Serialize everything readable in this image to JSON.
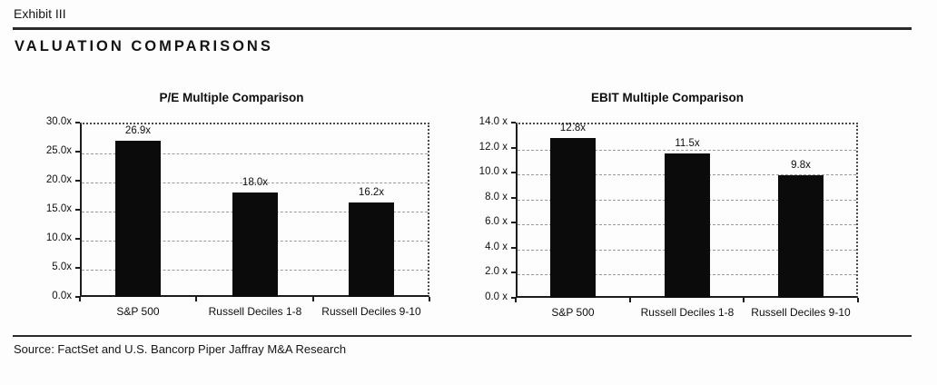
{
  "page": {
    "exhibit_label": "Exhibit III",
    "title": "VALUATION COMPARISONS",
    "source": "Source: FactSet and U.S. Bancorp Piper Jaffray M&A Research"
  },
  "chart_data": [
    {
      "type": "bar",
      "title": "P/E Multiple Comparison",
      "categories": [
        "S&P 500",
        "Russell Deciles 1-8",
        "Russell Deciles 9-10"
      ],
      "values": [
        26.9,
        18.0,
        16.2
      ],
      "value_labels": [
        "26.9x",
        "18.0x",
        "16.2x"
      ],
      "xlabel": "",
      "ylabel": "",
      "ylim": [
        0,
        30
      ],
      "ytick_labels": [
        "30.0x",
        "25.0x",
        "20.0x",
        "15.0x",
        "10.0x",
        "5.0x",
        "0.0x"
      ],
      "grid": true,
      "legend": false,
      "bar_color": "#0b0b0b"
    },
    {
      "type": "bar",
      "title": "EBIT Multiple Comparison",
      "categories": [
        "S&P 500",
        "Russell Deciles 1-8",
        "Russell Deciles 9-10"
      ],
      "values": [
        12.8,
        11.5,
        9.8
      ],
      "value_labels": [
        "12.8x",
        "11.5x",
        "9.8x"
      ],
      "xlabel": "",
      "ylabel": "",
      "ylim": [
        0,
        14
      ],
      "ytick_labels": [
        "14.0 x",
        "12.0 x",
        "10.0 x",
        "8.0 x",
        "6.0 x",
        "4.0 x",
        "2.0 x",
        "0.0 x"
      ],
      "grid": true,
      "legend": false,
      "bar_color": "#0b0b0b"
    }
  ]
}
